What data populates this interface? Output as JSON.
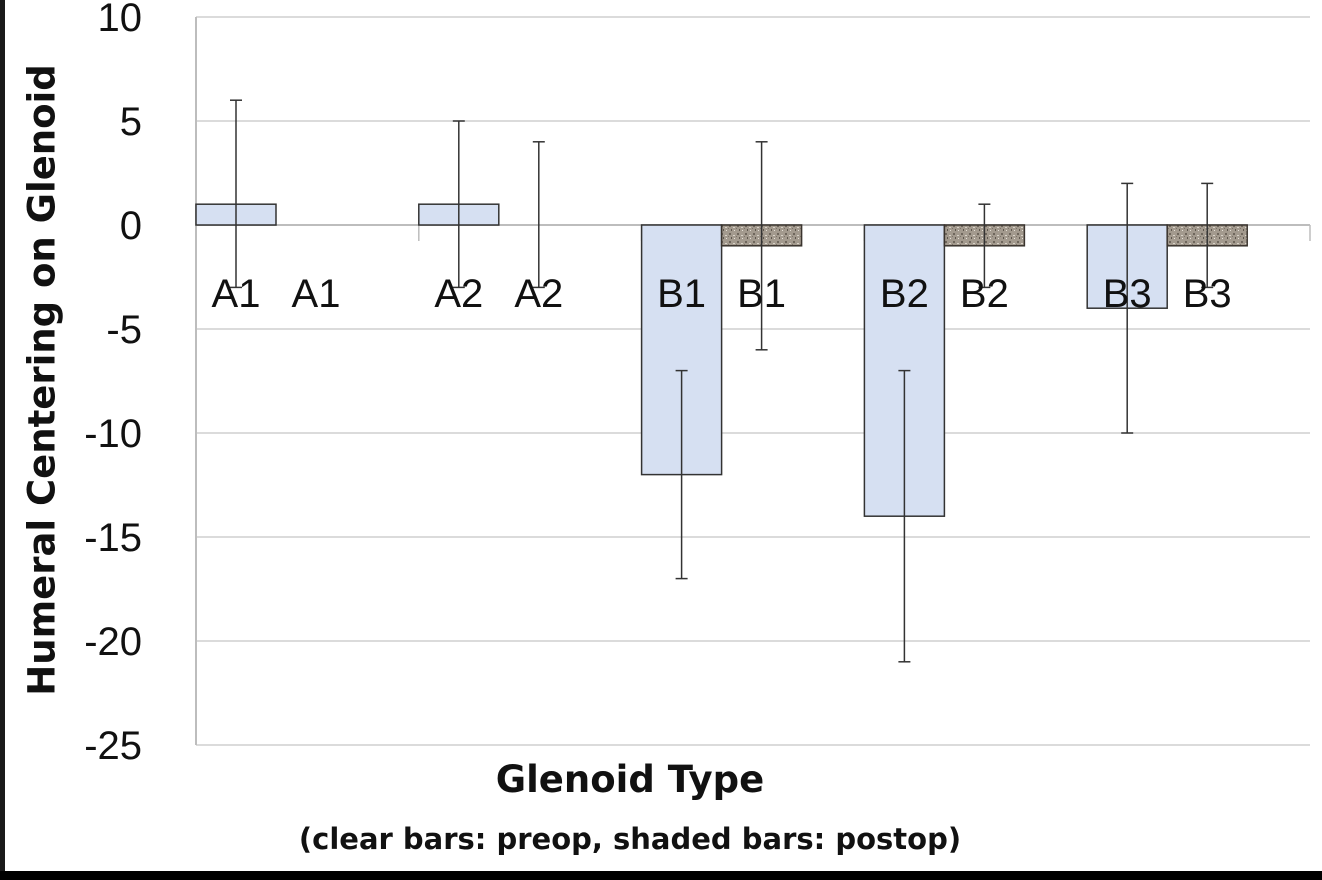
{
  "chart_data": {
    "type": "bar",
    "ylabel": "Humeral Centering on Glenoid",
    "xlabel": "Glenoid Type",
    "subtitle": "(clear bars: preop, shaded bars: postop)",
    "ylim": [
      -25,
      10
    ],
    "yticks": [
      10,
      5,
      0,
      -5,
      -10,
      -15,
      -20,
      -25
    ],
    "grid": true,
    "categories": [
      "A1",
      "A2",
      "B1",
      "B2",
      "B3"
    ],
    "series": [
      {
        "style": "clear",
        "values": [
          1,
          1,
          -12,
          -14,
          -4
        ],
        "err_low": [
          -3,
          -3,
          -17,
          -21,
          -10
        ],
        "err_high": [
          6,
          5,
          -7,
          -7,
          2
        ],
        "labels": [
          "A1",
          "A2",
          "B1",
          "B2",
          "B3"
        ]
      },
      {
        "style": "shaded",
        "values": [
          0,
          0,
          -1,
          -1,
          -1
        ],
        "err_low": [
          0,
          -3,
          -6,
          -3,
          -3
        ],
        "err_high": [
          0,
          4,
          4,
          1,
          2
        ],
        "labels": [
          "A1",
          "A2",
          "B1",
          "B2",
          "B3"
        ]
      }
    ],
    "colors": {
      "preop": "#d6e0f2",
      "postop": "#9a8f82",
      "grid": "#cfcfcf",
      "axis": "#bdbdbd"
    }
  }
}
